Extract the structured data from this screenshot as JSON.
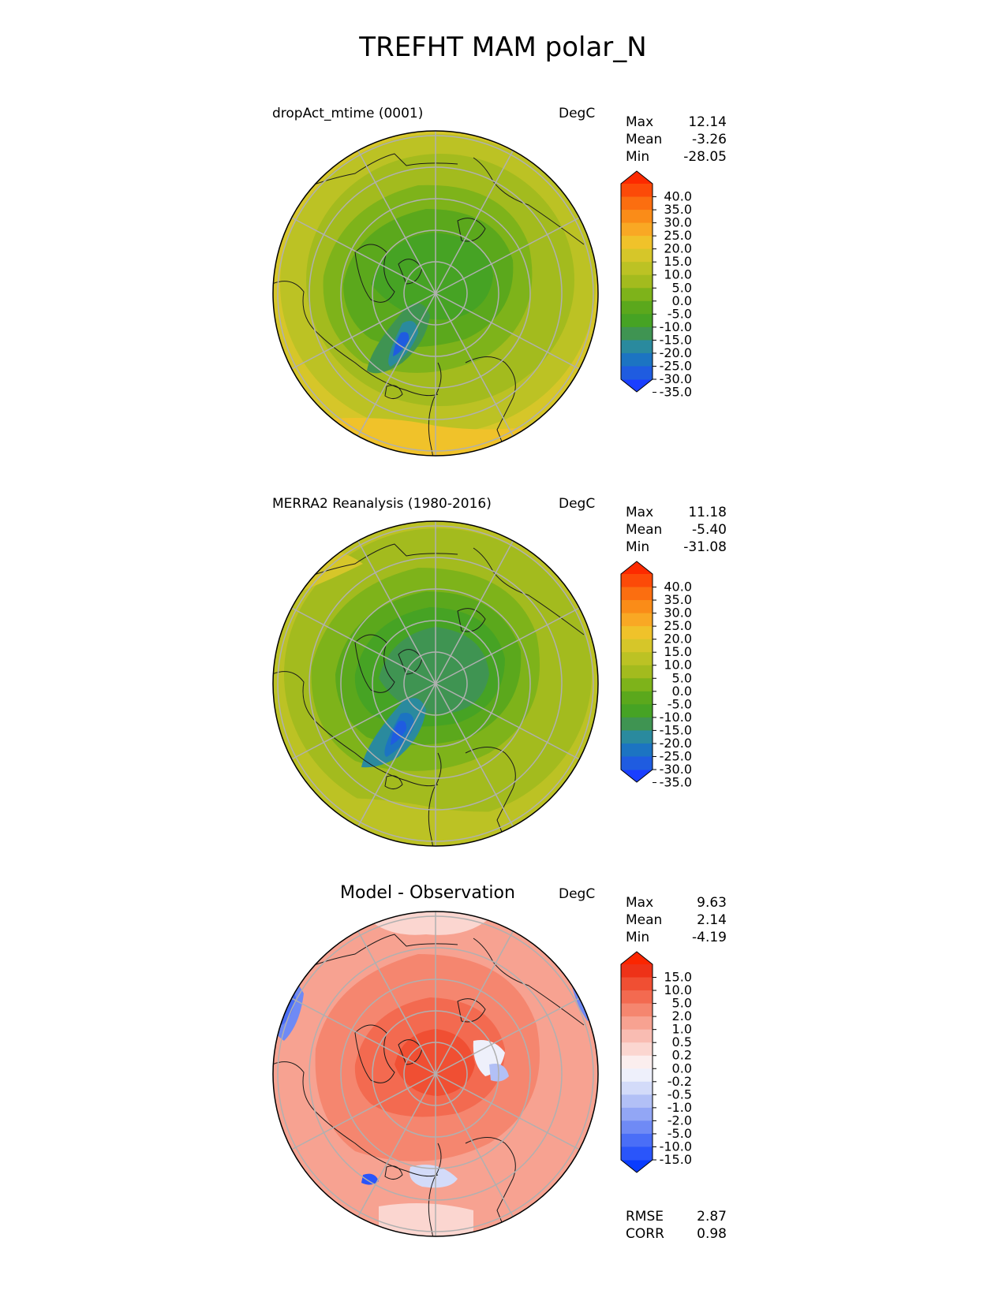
{
  "title": "TREFHT MAM polar_N",
  "panels": [
    {
      "id": "test",
      "title": "dropAct_mtime (0001)",
      "units": "DegC",
      "stats": [
        {
          "label": "Max",
          "value": "12.14"
        },
        {
          "label": "Mean",
          "value": "-3.26"
        },
        {
          "label": "Min",
          "value": "-28.05"
        }
      ],
      "colorbar": {
        "colors": [
          "#1a3fff",
          "#1f5ce0",
          "#1c74c2",
          "#2a8a9e",
          "#3f9452",
          "#46a324",
          "#5ba81c",
          "#7eb31a",
          "#a3bb1e",
          "#bcc224",
          "#d6c629",
          "#f0c22a",
          "#f9a824",
          "#fa8c18",
          "#fb6e10",
          "#fc4a08",
          "#fd2a00"
        ],
        "ticks": [
          "40.0",
          "35.0",
          "30.0",
          "25.0",
          "20.0",
          "15.0",
          "10.0",
          "5.0",
          "0.0",
          "-5.0",
          "-10.0",
          "-15.0",
          "-20.0",
          "-25.0",
          "-30.0",
          "-35.0"
        ]
      }
    },
    {
      "id": "ref",
      "title": "MERRA2 Reanalysis (1980-2016)",
      "units": "DegC",
      "stats": [
        {
          "label": "Max",
          "value": "11.18"
        },
        {
          "label": "Mean",
          "value": "-5.40"
        },
        {
          "label": "Min",
          "value": "-31.08"
        }
      ],
      "colorbar": {
        "colors": [
          "#1a3fff",
          "#1f5ce0",
          "#1c74c2",
          "#2a8a9e",
          "#3f9452",
          "#46a324",
          "#5ba81c",
          "#7eb31a",
          "#a3bb1e",
          "#bcc224",
          "#d6c629",
          "#f0c22a",
          "#f9a824",
          "#fa8c18",
          "#fb6e10",
          "#fc4a08",
          "#fd2a00"
        ],
        "ticks": [
          "40.0",
          "35.0",
          "30.0",
          "25.0",
          "20.0",
          "15.0",
          "10.0",
          "5.0",
          "0.0",
          "-5.0",
          "-10.0",
          "-15.0",
          "-20.0",
          "-25.0",
          "-30.0",
          "-35.0"
        ]
      }
    },
    {
      "id": "diff",
      "title": "Model - Observation",
      "units": "DegC",
      "stats": [
        {
          "label": "Max",
          "value": "9.63"
        },
        {
          "label": "Mean",
          "value": "2.14"
        },
        {
          "label": "Min",
          "value": "-4.19"
        }
      ],
      "extra_stats": [
        {
          "label": "RMSE",
          "value": "2.87"
        },
        {
          "label": "CORR",
          "value": "0.98"
        }
      ],
      "colorbar": {
        "colors": [
          "#0a3cff",
          "#2a55fa",
          "#4a6ef7",
          "#6f8af5",
          "#92a6f5",
          "#b2c0f6",
          "#d3dbf9",
          "#eef0fb",
          "#fbeeee",
          "#fbd6d0",
          "#f9bcb2",
          "#f7a291",
          "#f5866f",
          "#f36a50",
          "#f04f33",
          "#ee3218",
          "#fb2600"
        ],
        "ticks": [
          "15.0",
          "10.0",
          "5.0",
          "2.0",
          "1.0",
          "0.5",
          "0.2",
          "0.0",
          "-0.2",
          "-0.5",
          "-1.0",
          "-2.0",
          "-5.0",
          "-10.0",
          "-15.0"
        ]
      }
    }
  ]
}
